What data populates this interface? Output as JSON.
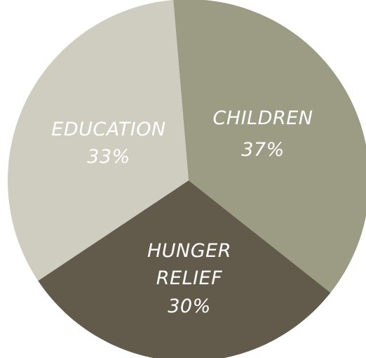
{
  "chart_data": {
    "type": "pie",
    "title": "",
    "slices": [
      {
        "label": "CHILDREN",
        "label_lines": [
          "CHILDREN"
        ],
        "value": 37,
        "value_label": "37%",
        "color": "#9c9b84"
      },
      {
        "label": "HUNGER RELIEF",
        "label_lines": [
          "HUNGER",
          "RELIEF"
        ],
        "value": 30,
        "value_label": "30%",
        "color": "#625b4c"
      },
      {
        "label": "EDUCATION",
        "label_lines": [
          "EDUCATION"
        ],
        "value": 33,
        "value_label": "33%",
        "color": "#cecdc0"
      }
    ],
    "legend": "none",
    "label_color": "#ffffff"
  }
}
